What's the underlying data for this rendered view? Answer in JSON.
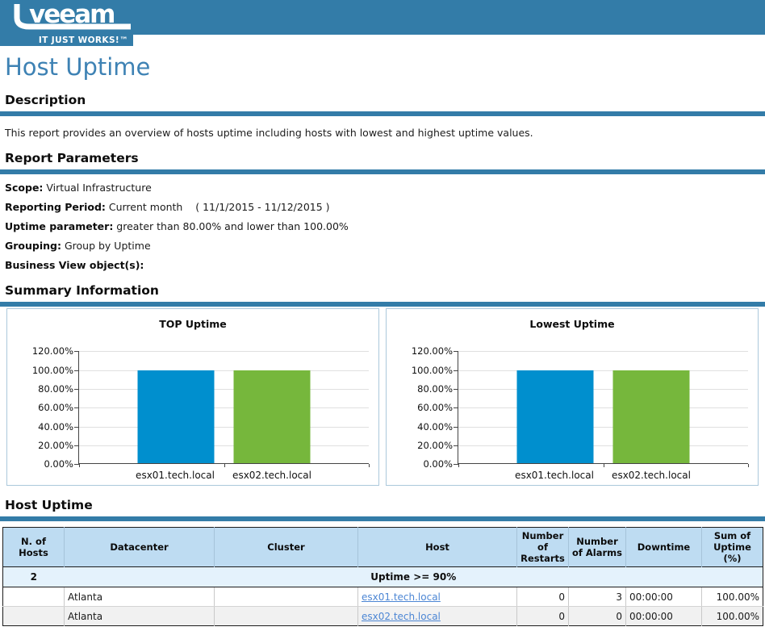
{
  "header": {
    "logo_text": "veeam",
    "tagline": "IT JUST WORKS!™",
    "banner_color": "#337CA8"
  },
  "page_title": "Host Uptime",
  "sections": {
    "description": {
      "heading": "Description",
      "text": "This report provides an overview of hosts uptime including hosts with lowest and highest uptime values."
    },
    "report_parameters": {
      "heading": "Report Parameters",
      "params": [
        {
          "label": "Scope:",
          "value": "Virtual Infrastructure"
        },
        {
          "label": "Reporting Period:",
          "value": "Current month    ( 11/1/2015 - 11/12/2015 )"
        },
        {
          "label": "Uptime parameter:",
          "value": "greater than 80.00% and lower than 100.00%"
        },
        {
          "label": "Grouping:",
          "value": "Group by Uptime"
        },
        {
          "label": "Business View object(s):",
          "value": ""
        }
      ]
    },
    "summary": {
      "heading": "Summary Information"
    },
    "host_uptime": {
      "heading": "Host Uptime"
    }
  },
  "chart_data": [
    {
      "type": "bar",
      "title": "TOP Uptime",
      "categories": [
        "esx01.tech.local",
        "esx02.tech.local"
      ],
      "values": [
        100.0,
        100.0
      ],
      "bar_colors": [
        "#008FCE",
        "#76B73C"
      ],
      "ylim": [
        0,
        120
      ],
      "yticks": [
        0,
        20,
        40,
        60,
        80,
        100,
        120
      ],
      "ytick_labels": [
        "0.00%",
        "20.00%",
        "40.00%",
        "60.00%",
        "80.00%",
        "100.00%",
        "120.00%"
      ],
      "xlabel": "",
      "ylabel": "",
      "grid": true,
      "legend": "none"
    },
    {
      "type": "bar",
      "title": "Lowest Uptime",
      "categories": [
        "esx01.tech.local",
        "esx02.tech.local"
      ],
      "values": [
        100.0,
        100.0
      ],
      "bar_colors": [
        "#008FCE",
        "#76B73C"
      ],
      "ylim": [
        0,
        120
      ],
      "yticks": [
        0,
        20,
        40,
        60,
        80,
        100,
        120
      ],
      "ytick_labels": [
        "0.00%",
        "20.00%",
        "40.00%",
        "60.00%",
        "80.00%",
        "100.00%",
        "120.00%"
      ],
      "xlabel": "",
      "ylabel": "",
      "grid": true,
      "legend": "none"
    }
  ],
  "table": {
    "columns": [
      "N. of Hosts",
      "Datacenter",
      "Cluster",
      "Host",
      "Number of Restarts",
      "Number of Alarms",
      "Downtime",
      "Sum of Uptime (%)"
    ],
    "group_row": {
      "n_of_hosts": "2",
      "label": "Uptime >= 90%"
    },
    "rows": [
      {
        "n_of_hosts": "",
        "datacenter": "Atlanta",
        "cluster": "",
        "host": "esx01.tech.local",
        "restarts": "0",
        "alarms": "3",
        "downtime": "00:00:00",
        "uptime": "100.00%"
      },
      {
        "n_of_hosts": "",
        "datacenter": "Atlanta",
        "cluster": "",
        "host": "esx02.tech.local",
        "restarts": "0",
        "alarms": "0",
        "downtime": "00:00:00",
        "uptime": "100.00%"
      }
    ]
  },
  "colors": {
    "banner_blue": "#337CA8",
    "title_blue": "#3E82B4",
    "bar_blue": "#008FCE",
    "bar_green": "#76B73C",
    "link_blue": "#4C86D4",
    "uptime_green": "#00A000",
    "table_header_bg": "#BEDCF2",
    "group_row_bg": "#E4F2FC",
    "alt_row_bg": "#F1F1F1"
  }
}
